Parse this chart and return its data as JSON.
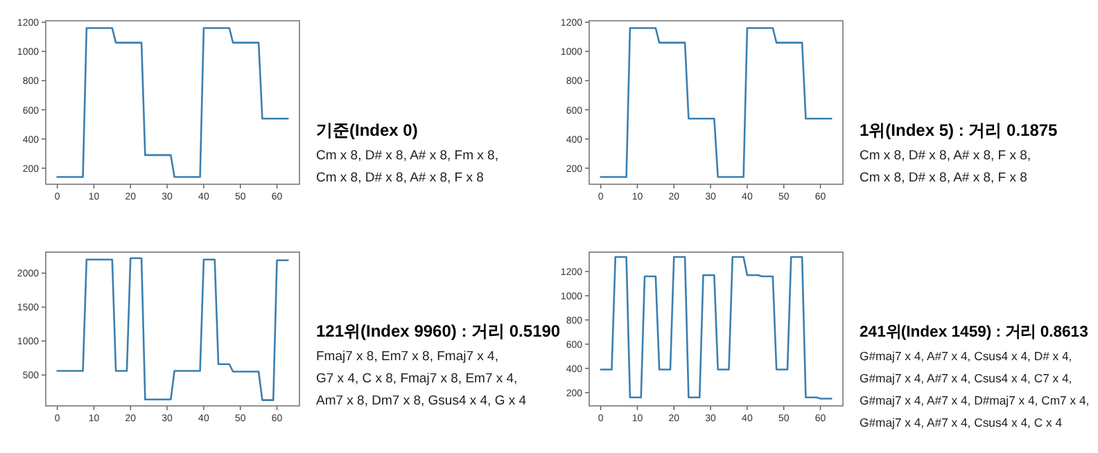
{
  "chart_data": [
    {
      "type": "line",
      "x": [
        0,
        1,
        2,
        3,
        4,
        5,
        6,
        7,
        8,
        9,
        10,
        11,
        12,
        13,
        14,
        15,
        16,
        17,
        18,
        19,
        20,
        21,
        22,
        23,
        24,
        25,
        26,
        27,
        28,
        29,
        30,
        31,
        32,
        33,
        34,
        35,
        36,
        37,
        38,
        39,
        40,
        41,
        42,
        43,
        44,
        45,
        46,
        47,
        48,
        49,
        50,
        51,
        52,
        53,
        54,
        55,
        56,
        57,
        58,
        59,
        60,
        61,
        62,
        63
      ],
      "series": [
        {
          "color": "#3b7fb0",
          "values": [
            140,
            140,
            140,
            140,
            140,
            140,
            140,
            140,
            1160,
            1160,
            1160,
            1160,
            1160,
            1160,
            1160,
            1160,
            1060,
            1060,
            1060,
            1060,
            1060,
            1060,
            1060,
            1060,
            290,
            290,
            290,
            290,
            290,
            290,
            290,
            290,
            140,
            140,
            140,
            140,
            140,
            140,
            140,
            140,
            1160,
            1160,
            1160,
            1160,
            1160,
            1160,
            1160,
            1160,
            1060,
            1060,
            1060,
            1060,
            1060,
            1060,
            1060,
            1060,
            540,
            540,
            540,
            540,
            540,
            540,
            540,
            540
          ]
        }
      ],
      "xlim": [
        -3.15,
        66.15
      ],
      "xticks": [
        0,
        10,
        20,
        30,
        40,
        50,
        60
      ],
      "ylim": [
        90,
        1210
      ],
      "yticks": [
        200,
        400,
        600,
        800,
        1000,
        1200
      ]
    },
    {
      "type": "other",
      "title": "기준(Index 0)",
      "annotations": [
        "Cm x 8, D# x 8, A# x 8, Fm x 8,",
        "Cm x 8, D# x 8, A# x 8, F x 8"
      ]
    },
    {
      "type": "line",
      "x": [
        0,
        1,
        2,
        3,
        4,
        5,
        6,
        7,
        8,
        9,
        10,
        11,
        12,
        13,
        14,
        15,
        16,
        17,
        18,
        19,
        20,
        21,
        22,
        23,
        24,
        25,
        26,
        27,
        28,
        29,
        30,
        31,
        32,
        33,
        34,
        35,
        36,
        37,
        38,
        39,
        40,
        41,
        42,
        43,
        44,
        45,
        46,
        47,
        48,
        49,
        50,
        51,
        52,
        53,
        54,
        55,
        56,
        57,
        58,
        59,
        60,
        61,
        62,
        63
      ],
      "series": [
        {
          "color": "#3b7fb0",
          "values": [
            140,
            140,
            140,
            140,
            140,
            140,
            140,
            140,
            1160,
            1160,
            1160,
            1160,
            1160,
            1160,
            1160,
            1160,
            1060,
            1060,
            1060,
            1060,
            1060,
            1060,
            1060,
            1060,
            540,
            540,
            540,
            540,
            540,
            540,
            540,
            540,
            140,
            140,
            140,
            140,
            140,
            140,
            140,
            140,
            1160,
            1160,
            1160,
            1160,
            1160,
            1160,
            1160,
            1160,
            1060,
            1060,
            1060,
            1060,
            1060,
            1060,
            1060,
            1060,
            540,
            540,
            540,
            540,
            540,
            540,
            540,
            540
          ]
        }
      ],
      "xlim": [
        -3.15,
        66.15
      ],
      "xticks": [
        0,
        10,
        20,
        30,
        40,
        50,
        60
      ],
      "ylim": [
        90,
        1210
      ],
      "yticks": [
        200,
        400,
        600,
        800,
        1000,
        1200
      ]
    },
    {
      "type": "other",
      "title": "1위(Index 5) : 거리 0.1875",
      "annotations": [
        "Cm x 8, D# x 8, A# x 8, F x 8,",
        "Cm x 8, D# x 8, A# x 8, F x 8"
      ]
    },
    {
      "type": "line",
      "x": [
        0,
        1,
        2,
        3,
        4,
        5,
        6,
        7,
        8,
        9,
        10,
        11,
        12,
        13,
        14,
        15,
        16,
        17,
        18,
        19,
        20,
        21,
        22,
        23,
        24,
        25,
        26,
        27,
        28,
        29,
        30,
        31,
        32,
        33,
        34,
        35,
        36,
        37,
        38,
        39,
        40,
        41,
        42,
        43,
        44,
        45,
        46,
        47,
        48,
        49,
        50,
        51,
        52,
        53,
        54,
        55,
        56,
        57,
        58,
        59,
        60,
        61,
        62,
        63
      ],
      "series": [
        {
          "color": "#3b7fb0",
          "values": [
            560,
            560,
            560,
            560,
            560,
            560,
            560,
            560,
            2200,
            2200,
            2200,
            2200,
            2200,
            2200,
            2200,
            2200,
            560,
            560,
            560,
            560,
            2220,
            2220,
            2220,
            2220,
            140,
            140,
            140,
            140,
            140,
            140,
            140,
            140,
            560,
            560,
            560,
            560,
            560,
            560,
            560,
            560,
            2200,
            2200,
            2200,
            2200,
            660,
            660,
            660,
            660,
            550,
            550,
            550,
            550,
            550,
            550,
            550,
            550,
            130,
            130,
            130,
            130,
            2190,
            2190,
            2190,
            2190
          ]
        }
      ],
      "xlim": [
        -3.15,
        66.15
      ],
      "xticks": [
        0,
        10,
        20,
        30,
        40,
        50,
        60
      ],
      "ylim": [
        45,
        2310
      ],
      "yticks": [
        500,
        1000,
        1500,
        2000
      ]
    },
    {
      "type": "other",
      "title": "121위(Index 9960) : 거리 0.5190",
      "annotations": [
        "Fmaj7 x 8, Em7 x 8, Fmaj7 x 4,",
        "G7 x 4, C x 8, Fmaj7 x 8, Em7 x 4,",
        "Am7 x 8, Dm7 x 8, Gsus4 x 4, G x 4"
      ]
    },
    {
      "type": "line",
      "x": [
        0,
        1,
        2,
        3,
        4,
        5,
        6,
        7,
        8,
        9,
        10,
        11,
        12,
        13,
        14,
        15,
        16,
        17,
        18,
        19,
        20,
        21,
        22,
        23,
        24,
        25,
        26,
        27,
        28,
        29,
        30,
        31,
        32,
        33,
        34,
        35,
        36,
        37,
        38,
        39,
        40,
        41,
        42,
        43,
        44,
        45,
        46,
        47,
        48,
        49,
        50,
        51,
        52,
        53,
        54,
        55,
        56,
        57,
        58,
        59,
        60,
        61,
        62,
        63
      ],
      "series": [
        {
          "color": "#3b7fb0",
          "values": [
            390,
            390,
            390,
            390,
            1320,
            1320,
            1320,
            1320,
            160,
            160,
            160,
            160,
            1160,
            1160,
            1160,
            1160,
            390,
            390,
            390,
            390,
            1320,
            1320,
            1320,
            1320,
            160,
            160,
            160,
            160,
            1170,
            1170,
            1170,
            1170,
            390,
            390,
            390,
            390,
            1320,
            1320,
            1320,
            1320,
            1170,
            1170,
            1170,
            1170,
            1160,
            1160,
            1160,
            1160,
            390,
            390,
            390,
            390,
            1320,
            1320,
            1320,
            1320,
            160,
            160,
            160,
            160,
            150,
            150,
            150,
            150
          ]
        }
      ],
      "xlim": [
        -3.15,
        66.15
      ],
      "xticks": [
        0,
        10,
        20,
        30,
        40,
        50,
        60
      ],
      "ylim": [
        90,
        1360
      ],
      "yticks": [
        200,
        400,
        600,
        800,
        1000,
        1200
      ]
    },
    {
      "type": "other",
      "title": "241위(Index 1459) : 거리 0.8613",
      "annotations": [
        "G#maj7 x 4, A#7 x 4, Csus4 x 4, D# x 4,",
        "G#maj7 x 4, A#7 x 4, Csus4 x 4, C7 x 4,",
        "G#maj7 x 4, A#7 x 4, D#maj7 x 4, Cm7 x 4,",
        "G#maj7 x 4, A#7 x 4, Csus4 x 4, C x 4"
      ]
    }
  ]
}
